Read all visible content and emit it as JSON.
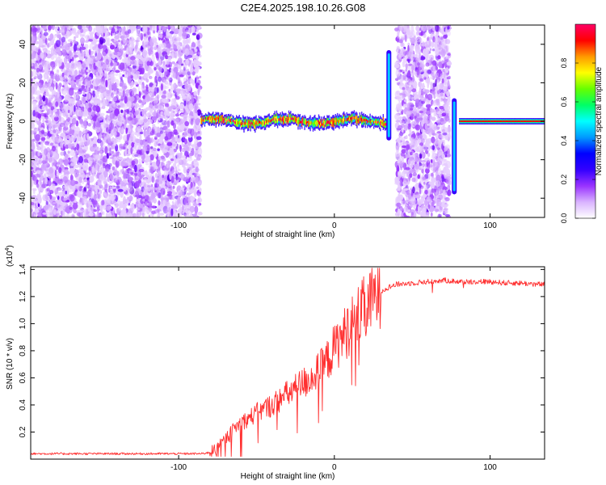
{
  "figure": {
    "title": "C2E4.2025.198.10.26.G08"
  },
  "chart_data": [
    {
      "type": "heatmap",
      "xlabel": "Height of straight line (km)",
      "ylabel": "Frequency (Hz)",
      "xlim": [
        -195,
        135
      ],
      "ylim": [
        -50,
        50
      ],
      "xticks": [
        -100,
        0,
        100
      ],
      "yticks": [
        -40,
        -20,
        0,
        20,
        40
      ],
      "grid": false,
      "colorbar": {
        "label": "Normalized spectral amplitude",
        "range": [
          0,
          1
        ],
        "ticks": [
          "0.0",
          "0.2",
          "0.4",
          "0.6",
          "0.8"
        ],
        "colormap": [
          "#ffffff",
          "#d9b3ff",
          "#9933ff",
          "#3300ff",
          "#0000ff",
          "#0099ff",
          "#00ffff",
          "#00ff66",
          "#66ff00",
          "#ffff00",
          "#ff9900",
          "#ff0000",
          "#ff0066"
        ]
      },
      "regions": [
        {
          "kind": "noise",
          "x": [
            -195,
            -86
          ],
          "freq": [
            -50,
            50
          ]
        },
        {
          "kind": "signal_band",
          "x": [
            -86,
            35
          ],
          "center_freq_hz": 0,
          "amplitude": 0.9
        },
        {
          "kind": "spike",
          "x": 35,
          "freq": [
            -10,
            37
          ]
        },
        {
          "kind": "noise",
          "x": [
            40,
            74
          ],
          "freq": [
            -50,
            50
          ]
        },
        {
          "kind": "spike",
          "x": 77,
          "freq": [
            -38,
            12
          ]
        },
        {
          "kind": "signal_band",
          "x": [
            80,
            135
          ],
          "center_freq_hz": 0,
          "amplitude": 0.95
        }
      ]
    },
    {
      "type": "line",
      "xlabel": "Height of straight line (km)",
      "ylabel": "SNR (10 * v/v)",
      "y_multiplier_label": "(x10",
      "y_multiplier_exp": "4",
      "y_multiplier_close": ")",
      "xlim": [
        -195,
        135
      ],
      "ylim": [
        0,
        1.42
      ],
      "xticks": [
        -100,
        0,
        100
      ],
      "yticks": [
        "0.2",
        "0.4",
        "0.6",
        "0.8",
        "1.0",
        "1.2",
        "1.4"
      ],
      "grid": false,
      "line_color": "#ff3030",
      "series": [
        {
          "x": [
            -195,
            -160,
            -130,
            -100,
            -85,
            -80,
            -75,
            -70,
            -65,
            -60,
            -55,
            -50,
            -45,
            -40,
            -35,
            -30,
            -25,
            -20,
            -15,
            -10,
            -5,
            0,
            5,
            10,
            15,
            20,
            25,
            30,
            35,
            40,
            50,
            60,
            70,
            80,
            90,
            100,
            110,
            120,
            130,
            135
          ],
          "values": [
            0.04,
            0.04,
            0.04,
            0.04,
            0.04,
            0.05,
            0.08,
            0.15,
            0.22,
            0.27,
            0.3,
            0.34,
            0.37,
            0.4,
            0.44,
            0.48,
            0.52,
            0.56,
            0.6,
            0.65,
            0.72,
            0.82,
            0.9,
            0.98,
            1.05,
            1.12,
            1.19,
            1.24,
            1.27,
            1.29,
            1.3,
            1.31,
            1.32,
            1.31,
            1.31,
            1.31,
            1.3,
            1.3,
            1.29,
            1.29
          ]
        }
      ]
    }
  ]
}
